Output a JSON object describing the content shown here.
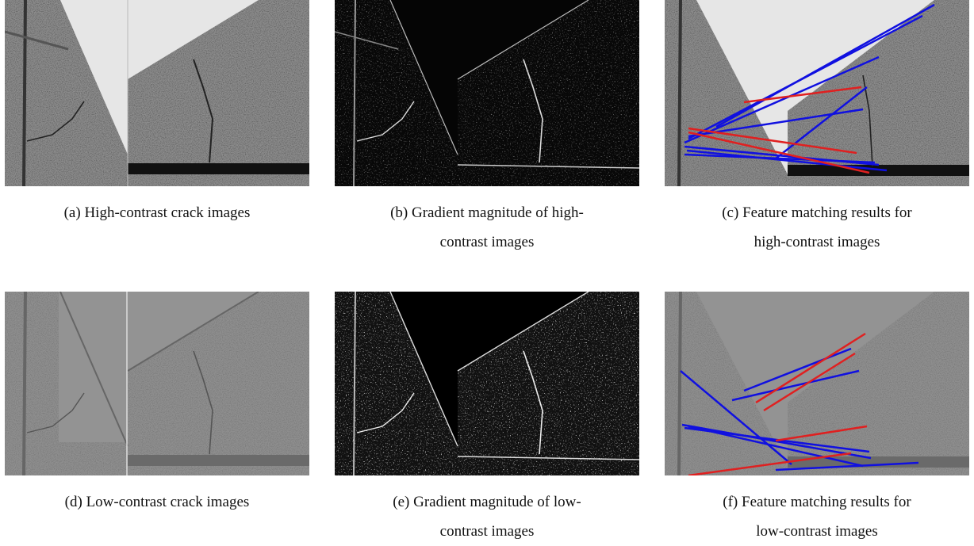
{
  "panels": [
    {
      "caption": [
        "(a) High-contrast crack images"
      ]
    },
    {
      "caption": [
        "(b) Gradient magnitude of high-",
        "contrast images"
      ]
    },
    {
      "caption": [
        "(c) Feature matching results for",
        "high-contrast images"
      ]
    },
    {
      "caption": [
        "(d) Low-contrast crack images"
      ]
    },
    {
      "caption": [
        "(e) Gradient magnitude of low-",
        "contrast images"
      ]
    },
    {
      "caption": [
        "(f) Feature matching results for",
        "low-contrast images"
      ]
    }
  ]
}
